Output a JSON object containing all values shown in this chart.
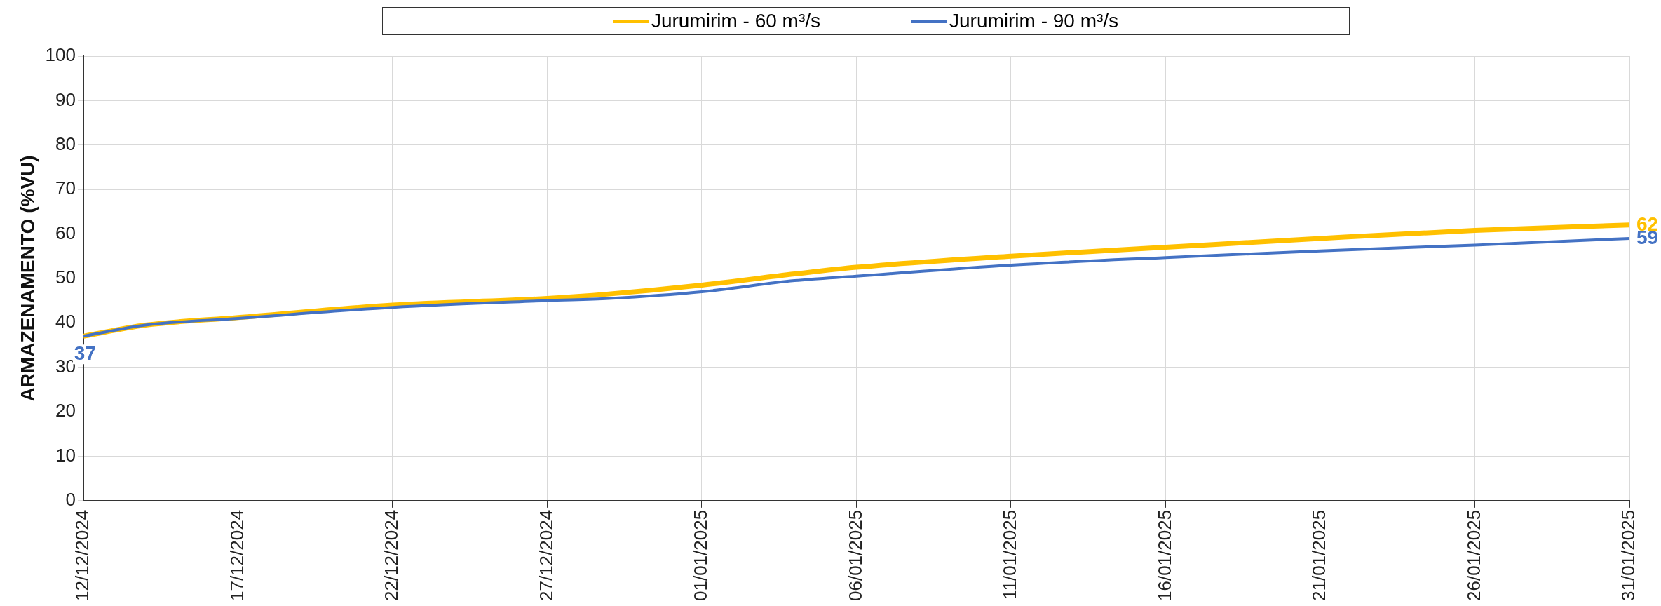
{
  "chart_data": {
    "type": "line",
    "ylabel": "ARMAZENAMENTO (%VU)",
    "x": [
      "2024-12-12",
      "2024-12-14",
      "2024-12-17",
      "2024-12-22",
      "2024-12-27",
      "2024-12-29",
      "2025-01-01",
      "2025-01-04",
      "2025-01-06",
      "2025-01-11",
      "2025-01-16",
      "2025-01-21",
      "2025-01-26",
      "2025-01-31"
    ],
    "series": [
      {
        "name": "Jurumirim - 60 m³/s",
        "color": "#ffc000",
        "values": [
          37,
          39.5,
          41.2,
          44,
          45.5,
          46.5,
          48.5,
          51,
          52.5,
          55,
          57,
          59,
          60.8,
          62
        ]
      },
      {
        "name": "Jurumirim - 90 m³/s",
        "color": "#4472c4",
        "values": [
          37,
          39.5,
          41,
          43.5,
          45,
          45.5,
          47,
          49.5,
          50.5,
          53,
          54.7,
          56.2,
          57.5,
          59
        ]
      }
    ],
    "xlim": [
      "2024-12-12",
      "2025-01-31"
    ],
    "xticks": [
      {
        "value": "2024-12-12",
        "label": "12/12/2024"
      },
      {
        "value": "2024-12-17",
        "label": "17/12/2024"
      },
      {
        "value": "2024-12-22",
        "label": "22/12/2024"
      },
      {
        "value": "2024-12-27",
        "label": "27/12/2024"
      },
      {
        "value": "2025-01-01",
        "label": "01/01/2025"
      },
      {
        "value": "2025-01-06",
        "label": "06/01/2025"
      },
      {
        "value": "2025-01-11",
        "label": "11/01/2025"
      },
      {
        "value": "2025-01-16",
        "label": "16/01/2025"
      },
      {
        "value": "2025-01-21",
        "label": "21/01/2025"
      },
      {
        "value": "2025-01-26",
        "label": "26/01/2025"
      },
      {
        "value": "2025-01-31",
        "label": "31/01/2025"
      }
    ],
    "ylim": [
      0,
      100
    ],
    "yticks": [
      0,
      10,
      20,
      30,
      40,
      50,
      60,
      70,
      80,
      90,
      100
    ],
    "annotations": [
      {
        "text": "37",
        "x": "2024-12-12",
        "y": 37
      },
      {
        "text": "62",
        "x": "2025-01-31",
        "y": 62
      },
      {
        "text": "59",
        "x": "2025-01-31",
        "y": 59
      }
    ],
    "grid": true,
    "legend": "top",
    "marker": "none",
    "line_style": "solid"
  }
}
